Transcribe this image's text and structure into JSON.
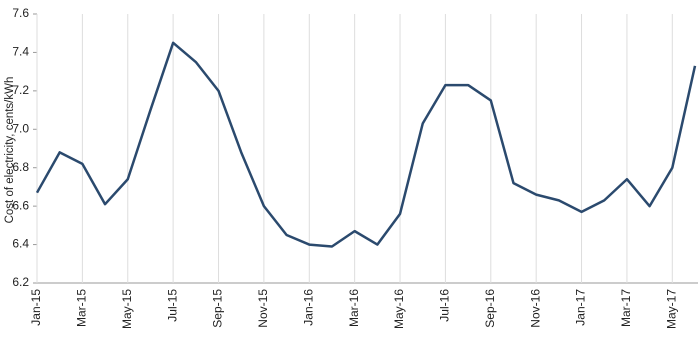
{
  "chart_data": {
    "type": "line",
    "y_label": "Cost of electricity, cents/kWh",
    "categories": [
      "Jan-15",
      null,
      "Mar-15",
      null,
      "May-15",
      null,
      "Jul-15",
      null,
      "Sep-15",
      null,
      "Nov-15",
      null,
      "Jan-16",
      null,
      "Mar-16",
      null,
      "May-16",
      null,
      "Jul-16",
      null,
      "Sep-16",
      null,
      "Nov-16",
      null,
      "Jan-17",
      null,
      "Mar-17",
      null,
      "May-17",
      null
    ],
    "series": [
      {
        "color": "#2b4a6e",
        "values": [
          6.67,
          6.88,
          6.82,
          6.61,
          6.74,
          7.1,
          7.45,
          7.35,
          7.2,
          6.88,
          6.6,
          6.45,
          6.4,
          6.39,
          6.47,
          6.4,
          6.56,
          7.03,
          7.23,
          7.23,
          7.15,
          6.72,
          6.66,
          6.63,
          6.57,
          6.63,
          6.74,
          6.6,
          6.8,
          7.33
        ]
      }
    ],
    "ylim": [
      6.2,
      7.6
    ],
    "yticks": [
      6.2,
      6.4,
      6.6,
      6.8,
      {
        "value": 7,
        "label": "7.0"
      },
      7.2,
      7.4,
      7.6
    ],
    "grid": "x"
  }
}
